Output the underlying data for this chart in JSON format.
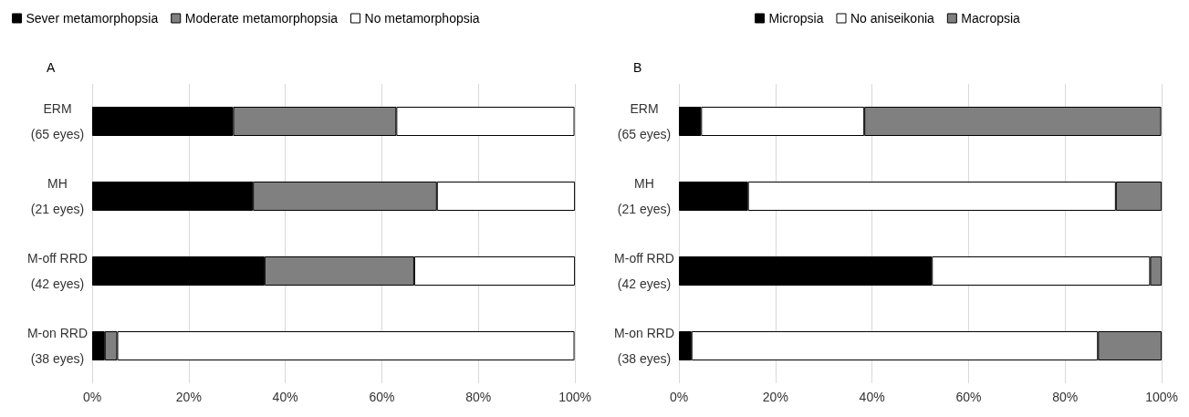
{
  "chart_data": [
    {
      "type": "bar",
      "title": "A",
      "orientation": "horizontal",
      "stacked": true,
      "categories": [
        "ERM\n(65 eyes)",
        "MH\n(21 eyes)",
        "M-off RRD\n(42 eyes)",
        "M-on RRD\n(38 eyes)"
      ],
      "series": [
        {
          "name": "Sever metamorphopsia",
          "color": "#000000",
          "values": [
            29.2,
            33.3,
            35.7,
            2.6
          ]
        },
        {
          "name": "Moderate metamorphopsia",
          "color": "#808080",
          "values": [
            33.8,
            38.1,
            31.0,
            2.6
          ]
        },
        {
          "name": "No metamorphopsia",
          "color": "#ffffff",
          "values": [
            36.9,
            28.6,
            33.3,
            94.7
          ]
        }
      ],
      "xlim": [
        0,
        100
      ],
      "xticks": [
        {
          "value": 0,
          "label": "0%"
        },
        {
          "value": 20,
          "label": "20%"
        },
        {
          "value": 40,
          "label": "40%"
        },
        {
          "value": 60,
          "label": "60%"
        },
        {
          "value": 80,
          "label": "80%"
        },
        {
          "value": 100,
          "label": "100%"
        }
      ],
      "grid": "x",
      "legend": "top left"
    },
    {
      "type": "bar",
      "title": "B",
      "orientation": "horizontal",
      "stacked": true,
      "categories": [
        "ERM\n(65 eyes)",
        "MH\n(21 eyes)",
        "M-off RRD\n(42 eyes)",
        "M-on RRD\n(38 eyes)"
      ],
      "series": [
        {
          "name": "Micropsia",
          "color": "#000000",
          "values": [
            4.6,
            14.3,
            52.4,
            2.6
          ]
        },
        {
          "name": "No aniseikonia",
          "color": "#ffffff",
          "values": [
            33.8,
            76.2,
            45.2,
            84.2
          ]
        },
        {
          "name": "Macropsia",
          "color": "#808080",
          "values": [
            61.5,
            9.5,
            2.4,
            13.2
          ]
        }
      ],
      "xlim": [
        0,
        100
      ],
      "xticks": [
        {
          "value": 0,
          "label": "0%"
        },
        {
          "value": 20,
          "label": "20%"
        },
        {
          "value": 40,
          "label": "40%"
        },
        {
          "value": 60,
          "label": "60%"
        },
        {
          "value": 80,
          "label": "80%"
        },
        {
          "value": 100,
          "label": "100%"
        }
      ],
      "grid": "x",
      "legend": "top"
    }
  ]
}
